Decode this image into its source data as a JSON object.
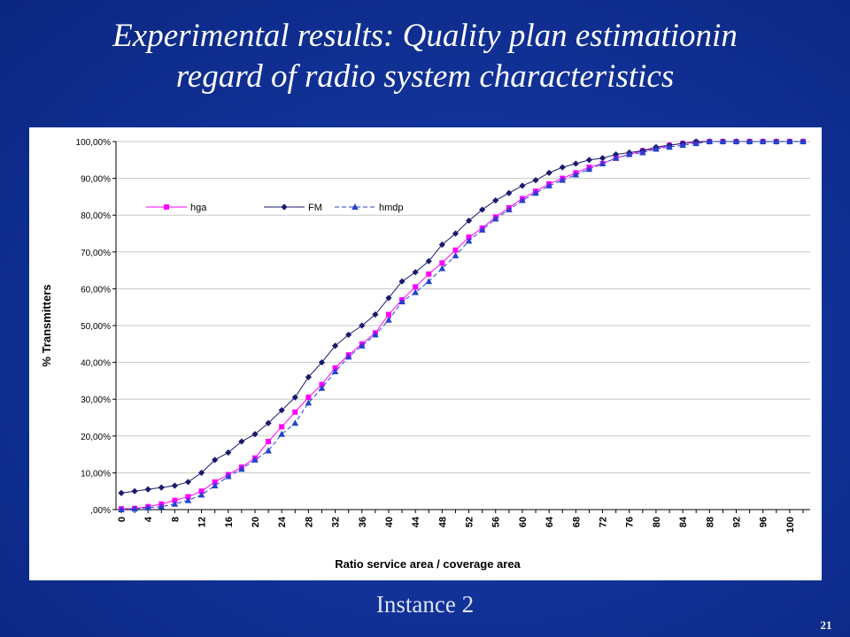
{
  "slide": {
    "title_line1": "Experimental results: Quality plan estimationin",
    "title_line2": "regard of radio system characteristics",
    "caption": "Instance 2",
    "page_number": "21"
  },
  "chart_data": {
    "type": "line",
    "title": "",
    "xlabel": "Ratio service area / coverage area",
    "ylabel": "% Transmitters",
    "x": [
      0,
      2,
      4,
      6,
      8,
      10,
      12,
      14,
      16,
      18,
      20,
      22,
      24,
      26,
      28,
      30,
      32,
      34,
      36,
      38,
      40,
      42,
      44,
      46,
      48,
      50,
      52,
      54,
      56,
      58,
      60,
      62,
      64,
      66,
      68,
      70,
      72,
      74,
      76,
      78,
      80,
      82,
      84,
      86,
      88,
      90,
      92,
      94,
      96,
      98,
      100,
      102
    ],
    "x_tick_labels": [
      "0",
      "4",
      "8",
      "12",
      "16",
      "20",
      "24",
      "28",
      "32",
      "36",
      "40",
      "44",
      "48",
      "52",
      "56",
      "60",
      "64",
      "68",
      "72",
      "76",
      "80",
      "84",
      "88",
      "92",
      "96",
      "100"
    ],
    "y_tick_labels": [
      ",00%",
      "10,00%",
      "20,00%",
      "30,00%",
      "40,00%",
      "50,00%",
      "60,00%",
      "70,00%",
      "80,00%",
      "90,00%",
      "100,00%"
    ],
    "ylim": [
      0,
      100
    ],
    "grid": "horizontal",
    "legend_position": "top-left",
    "series": [
      {
        "name": "hga",
        "color": "#ff00ff",
        "marker": "square",
        "values": [
          0.2,
          0.3,
          0.8,
          1.5,
          2.5,
          3.5,
          5,
          7.5,
          9.5,
          11.5,
          14,
          18.5,
          22.5,
          26.5,
          30.5,
          34,
          38.5,
          42,
          45,
          48,
          53,
          57,
          60.5,
          64,
          67,
          70.5,
          74,
          76.5,
          79.5,
          82,
          84.5,
          86.5,
          88.5,
          90,
          91.5,
          93,
          94,
          95.5,
          96.5,
          97.5,
          98,
          99,
          99.5,
          99.8,
          100,
          100,
          100,
          100,
          100,
          100,
          100,
          100
        ]
      },
      {
        "name": "FM",
        "color": "#1a1a6e",
        "marker": "diamond",
        "values": [
          4.5,
          5,
          5.5,
          6,
          6.5,
          7.5,
          10,
          13.5,
          15.5,
          18.5,
          20.5,
          23.5,
          27,
          30.5,
          36,
          40,
          44.5,
          47.5,
          50,
          53,
          57.5,
          62,
          64.5,
          67.5,
          72,
          75,
          78.5,
          81.5,
          84,
          86,
          88,
          89.5,
          91.5,
          93,
          94,
          95,
          95.5,
          96.5,
          97,
          97.5,
          98.5,
          99,
          99.5,
          100,
          100,
          100,
          100,
          100,
          100,
          100,
          100,
          100
        ]
      },
      {
        "name": "hmdp",
        "color": "#2244cc",
        "marker": "triangle",
        "values": [
          0,
          0.2,
          0.5,
          0.8,
          1.5,
          2.5,
          4,
          6.5,
          9,
          11,
          13.5,
          16,
          20.5,
          23.5,
          29,
          33,
          37.5,
          41.5,
          44.5,
          47.5,
          51.5,
          56.5,
          59,
          62,
          65.5,
          69,
          73,
          76,
          79,
          81.5,
          84,
          86,
          88,
          89.5,
          91,
          92.5,
          94,
          95.5,
          96.5,
          97,
          98,
          98.5,
          99,
          99.5,
          100,
          100,
          100,
          100,
          100,
          100,
          100,
          100
        ]
      }
    ]
  }
}
